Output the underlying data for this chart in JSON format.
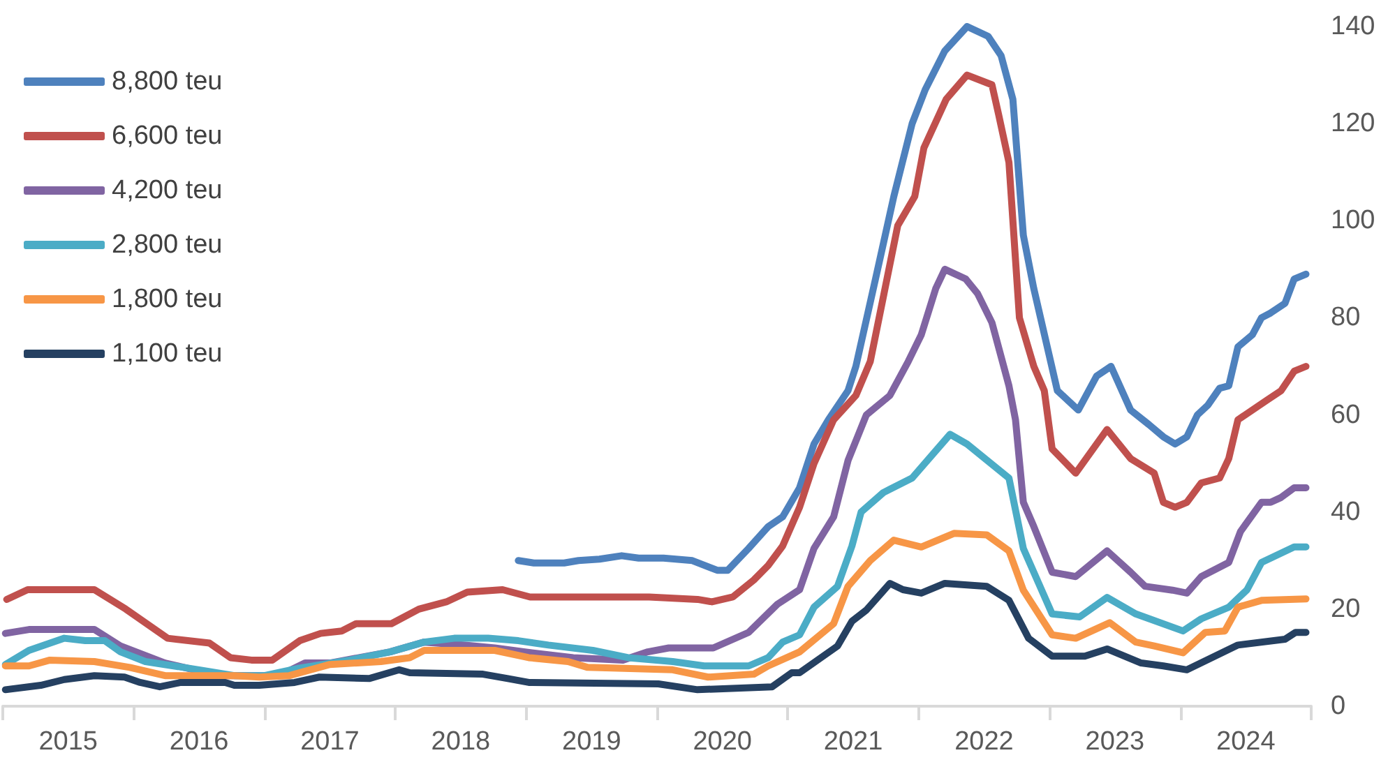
{
  "chart_data": {
    "type": "line",
    "legend": "top left",
    "marker": "none",
    "line_style": "solid",
    "grid": false,
    "xlim": [
      2015,
      2025
    ],
    "xticks": [
      {
        "value": 2015,
        "label": null
      },
      {
        "value": 2015.5,
        "label": "2015"
      },
      {
        "value": 2016,
        "label": null
      },
      {
        "value": 2016.5,
        "label": "2016"
      },
      {
        "value": 2017,
        "label": null
      },
      {
        "value": 2017.5,
        "label": "2017"
      },
      {
        "value": 2018,
        "label": null
      },
      {
        "value": 2018.5,
        "label": "2018"
      },
      {
        "value": 2019,
        "label": null
      },
      {
        "value": 2019.5,
        "label": "2019"
      },
      {
        "value": 2020,
        "label": null
      },
      {
        "value": 2020.5,
        "label": "2020"
      },
      {
        "value": 2021,
        "label": null
      },
      {
        "value": 2021.5,
        "label": "2021"
      },
      {
        "value": 2022,
        "label": null
      },
      {
        "value": 2022.5,
        "label": "2022"
      },
      {
        "value": 2023,
        "label": null
      },
      {
        "value": 2023.5,
        "label": "2023"
      },
      {
        "value": 2024,
        "label": null
      },
      {
        "value": 2024.5,
        "label": "2024"
      },
      {
        "value": 2025,
        "label": null
      }
    ],
    "ylim": [
      0,
      140
    ],
    "yticks": [
      0,
      20,
      40,
      60,
      80,
      100,
      120,
      140
    ],
    "series": [
      {
        "name": "8,800 teu",
        "color": "#4e81bd",
        "x": [
          2018.94,
          2019.06,
          2019.29,
          2019.4,
          2019.56,
          2019.73,
          2019.86,
          2020.05,
          2020.27,
          2020.46,
          2020.54,
          2020.7,
          2020.85,
          2020.96,
          2021.09,
          2021.2,
          2021.31,
          2021.46,
          2021.52,
          2021.67,
          2021.81,
          2021.95,
          2022.05,
          2022.2,
          2022.37,
          2022.53,
          2022.63,
          2022.72,
          2022.8,
          2022.88,
          2023.06,
          2023.22,
          2023.36,
          2023.47,
          2023.62,
          2023.76,
          2023.87,
          2023.96,
          2024.05,
          2024.13,
          2024.21,
          2024.3,
          2024.37,
          2024.44,
          2024.55,
          2024.62,
          2024.69,
          2024.8,
          2024.87,
          2024.96
        ],
        "values": [
          30,
          29.5,
          29.5,
          30,
          30.3,
          31,
          30.5,
          30.5,
          30,
          28,
          28,
          32.5,
          37,
          39,
          45,
          54,
          59,
          65,
          70,
          88,
          105,
          120,
          127,
          135,
          140,
          138,
          134,
          125,
          97,
          86,
          65,
          61,
          68,
          70,
          61,
          58,
          55.5,
          54,
          55.5,
          60,
          62,
          65.5,
          66,
          74,
          76.5,
          80,
          81,
          83,
          88,
          89
        ]
      },
      {
        "name": "6,600 teu",
        "color": "#c0504d",
        "x": [
          2015.03,
          2015.19,
          2015.7,
          2015.94,
          2016.26,
          2016.58,
          2016.74,
          2016.9,
          2017.06,
          2017.27,
          2017.43,
          2017.59,
          2017.7,
          2017.97,
          2018.18,
          2018.39,
          2018.55,
          2018.82,
          2019.03,
          2019.94,
          2020.31,
          2020.42,
          2020.58,
          2020.74,
          2020.85,
          2020.96,
          2021.09,
          2021.2,
          2021.35,
          2021.52,
          2021.63,
          2021.84,
          2021.97,
          2022.04,
          2022.21,
          2022.37,
          2022.56,
          2022.61,
          2022.69,
          2022.77,
          2022.88,
          2022.96,
          2023.02,
          2023.2,
          2023.44,
          2023.62,
          2023.8,
          2023.87,
          2023.96,
          2024.05,
          2024.16,
          2024.3,
          2024.37,
          2024.44,
          2024.55,
          2024.66,
          2024.77,
          2024.87,
          2024.96
        ],
        "values": [
          22,
          24,
          24,
          20,
          14,
          13,
          10,
          9.5,
          9.5,
          13.5,
          15,
          15.5,
          17,
          17,
          20,
          21.5,
          23.5,
          24,
          22.5,
          22.5,
          22,
          21.5,
          22.5,
          26,
          29,
          33,
          41,
          50,
          59,
          64,
          71,
          99,
          105,
          115,
          125,
          130,
          128,
          122,
          112,
          80,
          70,
          65,
          53,
          48,
          57,
          51,
          48,
          42,
          41,
          42,
          46,
          47,
          51,
          59,
          61,
          63,
          65,
          69,
          70
        ]
      },
      {
        "name": "4,200 teu",
        "color": "#8064a2",
        "x": [
          2015.02,
          2015.2,
          2015.7,
          2015.9,
          2016.24,
          2016.65,
          2016.96,
          2017.11,
          2017.31,
          2017.5,
          2017.96,
          2018.22,
          2018.52,
          2018.76,
          2018.98,
          2019.36,
          2019.74,
          2019.93,
          2020.09,
          2020.43,
          2020.7,
          2020.92,
          2021.09,
          2021.2,
          2021.35,
          2021.46,
          2021.6,
          2021.78,
          2021.92,
          2022.02,
          2022.13,
          2022.2,
          2022.36,
          2022.45,
          2022.56,
          2022.69,
          2022.74,
          2022.8,
          2022.88,
          2023.02,
          2023.2,
          2023.44,
          2023.62,
          2023.73,
          2023.94,
          2024.05,
          2024.16,
          2024.37,
          2024.46,
          2024.62,
          2024.69,
          2024.77,
          2024.87,
          2024.96
        ],
        "values": [
          15,
          15.8,
          15.8,
          12.4,
          8.9,
          6.3,
          6.3,
          6.3,
          8.9,
          8.9,
          11.2,
          13.2,
          12.6,
          12,
          11.2,
          10,
          9.5,
          11.2,
          12,
          12,
          15.2,
          21,
          24,
          32.5,
          39,
          50.6,
          60,
          64,
          71,
          76.5,
          86,
          90,
          88,
          85,
          79,
          66,
          59,
          42,
          37,
          27.6,
          26.7,
          32,
          27.6,
          24.7,
          23.9,
          23.3,
          26.7,
          29.6,
          36,
          42,
          42,
          43,
          45,
          45
        ]
      },
      {
        "name": "2,800 teu",
        "color": "#4bacc6",
        "x": [
          2015.02,
          2015.2,
          2015.47,
          2015.63,
          2015.78,
          2015.9,
          2016.09,
          2016.5,
          2016.77,
          2017.0,
          2017.26,
          2017.65,
          2017.96,
          2018.22,
          2018.45,
          2018.71,
          2018.94,
          2019.17,
          2019.51,
          2019.78,
          2020.12,
          2020.36,
          2020.7,
          2020.85,
          2020.96,
          2021.09,
          2021.2,
          2021.38,
          2021.49,
          2021.56,
          2021.73,
          2021.95,
          2022.24,
          2022.37,
          2022.69,
          2022.8,
          2023.02,
          2023.23,
          2023.44,
          2023.66,
          2024.02,
          2024.16,
          2024.37,
          2024.51,
          2024.62,
          2024.87,
          2024.96
        ],
        "values": [
          8.6,
          11.5,
          14,
          13.5,
          13.5,
          11.2,
          9.2,
          7.5,
          6.3,
          6.3,
          7.8,
          9.5,
          11.2,
          13.2,
          14,
          14,
          13.5,
          12.6,
          11.5,
          10,
          9.2,
          8.3,
          8.3,
          10,
          13.2,
          14.7,
          20.4,
          24.7,
          33,
          40,
          44,
          47,
          56,
          54,
          47,
          32.5,
          19,
          18.4,
          22.4,
          19,
          15.5,
          18,
          20.4,
          24,
          29.6,
          32.8,
          32.8
        ]
      },
      {
        "name": "1,800 teu",
        "color": "#f79646",
        "x": [
          2015.02,
          2015.2,
          2015.36,
          2015.7,
          2015.97,
          2016.24,
          2016.77,
          2016.96,
          2017.19,
          2017.5,
          2017.89,
          2018.11,
          2018.22,
          2018.76,
          2019.02,
          2019.32,
          2019.47,
          2020.12,
          2020.39,
          2020.74,
          2020.85,
          2021.09,
          2021.35,
          2021.46,
          2021.63,
          2021.81,
          2022.02,
          2022.27,
          2022.52,
          2022.69,
          2022.8,
          2023.02,
          2023.2,
          2023.46,
          2023.66,
          2023.8,
          2024.02,
          2024.19,
          2024.34,
          2024.44,
          2024.62,
          2024.96
        ],
        "values": [
          8.3,
          8.3,
          9.5,
          9.2,
          8,
          6.3,
          6.3,
          6,
          6.3,
          8.6,
          9.2,
          10,
          11.5,
          11.5,
          10,
          9.2,
          8,
          7.5,
          6,
          6.6,
          8.3,
          11.2,
          17,
          24.7,
          30,
          34.2,
          32.8,
          35.6,
          35.3,
          32,
          23.9,
          14.7,
          14,
          17.2,
          13.2,
          12.4,
          11,
          15.2,
          15.5,
          20.4,
          21.8,
          22.1
        ]
      },
      {
        "name": "1,100 teu",
        "color": "#254061",
        "x": [
          2015.02,
          2015.29,
          2015.47,
          2015.7,
          2015.93,
          2016.05,
          2016.2,
          2016.36,
          2016.7,
          2016.77,
          2016.96,
          2017.23,
          2017.42,
          2017.8,
          2018.03,
          2018.11,
          2018.67,
          2018.86,
          2019.02,
          2020.01,
          2020.31,
          2020.88,
          2021.03,
          2021.09,
          2021.38,
          2021.49,
          2021.6,
          2021.78,
          2021.88,
          2022.02,
          2022.2,
          2022.52,
          2022.69,
          2022.84,
          2023.02,
          2023.27,
          2023.44,
          2023.7,
          2023.87,
          2024.05,
          2024.44,
          2024.8,
          2024.88,
          2024.96
        ],
        "values": [
          3.4,
          4.3,
          5.5,
          6.3,
          6,
          4.9,
          4,
          4.9,
          4.9,
          4.3,
          4.3,
          4.9,
          6,
          5.7,
          7.5,
          6.9,
          6.6,
          5.7,
          4.9,
          4.6,
          3.4,
          4,
          6.9,
          6.9,
          12.4,
          17.5,
          19.8,
          25.3,
          24,
          23.3,
          25.3,
          24.7,
          21.8,
          14,
          10.3,
          10.3,
          11.8,
          8.9,
          8.3,
          7.5,
          12.6,
          13.8,
          15.2,
          15.2
        ]
      }
    ]
  }
}
